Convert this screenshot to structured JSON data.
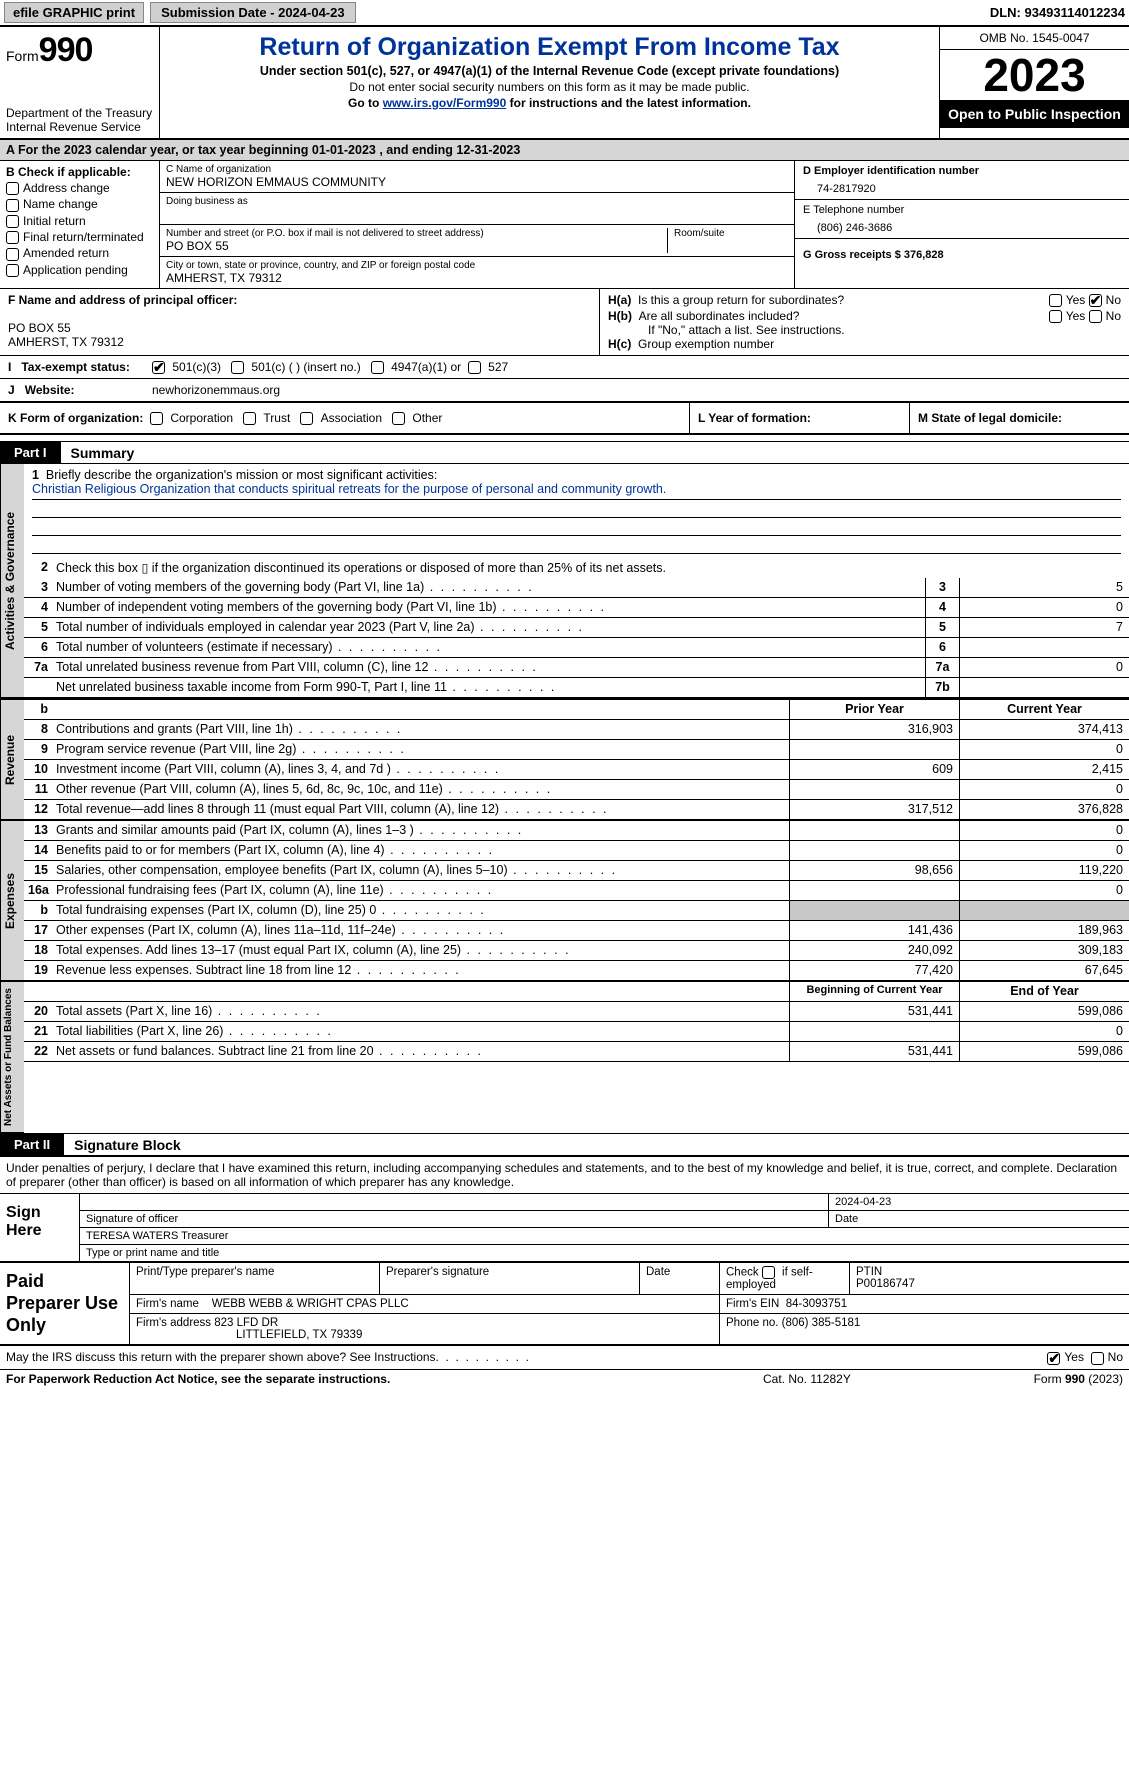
{
  "topbar": {
    "efile": "efile GRAPHIC print",
    "submission": "Submission Date - 2024-04-23",
    "dln": "DLN: 93493114012234"
  },
  "header": {
    "form_label": "Form",
    "form_num": "990",
    "dept": "Department of the Treasury\nInternal Revenue Service",
    "title": "Return of Organization Exempt From Income Tax",
    "sub1": "Under section 501(c), 527, or 4947(a)(1) of the Internal Revenue Code (except private foundations)",
    "sub2": "Do not enter social security numbers on this form as it may be made public.",
    "sub3_pre": "Go to ",
    "sub3_link": "www.irs.gov/Form990",
    "sub3_post": " for instructions and the latest information.",
    "omb": "OMB No. 1545-0047",
    "year": "2023",
    "otp": "Open to Public Inspection"
  },
  "rowA": "A For the 2023 calendar year, or tax year beginning 01-01-2023   , and ending 12-31-2023",
  "colB": {
    "label": "B Check if applicable:",
    "opts": [
      "Address change",
      "Name change",
      "Initial return",
      "Final return/terminated",
      "Amended return",
      "Application pending"
    ]
  },
  "colC": {
    "name_lab": "C Name of organization",
    "name_val": "NEW HORIZON EMMAUS COMMUNITY",
    "dba_lab": "Doing business as",
    "street_lab": "Number and street (or P.O. box if mail is not delivered to street address)",
    "street_val": "PO BOX 55",
    "room_lab": "Room/suite",
    "city_lab": "City or town, state or province, country, and ZIP or foreign postal code",
    "city_val": "AMHERST, TX   79312"
  },
  "colD": {
    "ein_lab": "D Employer identification number",
    "ein_val": "74-2817920",
    "tel_lab": "E Telephone number",
    "tel_val": "(806) 246-3686",
    "gross_lab": "G Gross receipts $ 376,828"
  },
  "F": {
    "lab": "F Name and address of principal officer:",
    "addr1": "PO BOX 55",
    "addr2": "AMHERST, TX   79312"
  },
  "H": {
    "a": "H(a)  Is this a group return for subordinates?",
    "b": "H(b)  Are all subordinates included?",
    "b_note": "If \"No,\" attach a list. See instructions.",
    "c": "H(c)  Group exemption number",
    "yes": "Yes",
    "no": "No"
  },
  "I": {
    "lab": "Tax-exempt status:",
    "o1": "501(c)(3)",
    "o2": "501(c) (  ) (insert no.)",
    "o3": "4947(a)(1) or",
    "o4": "527"
  },
  "J": {
    "lab": "Website:",
    "val": "newhorizonemmaus.org"
  },
  "K": {
    "lab": "K Form of organization:",
    "opts": [
      "Corporation",
      "Trust",
      "Association",
      "Other"
    ]
  },
  "L": "L Year of formation:",
  "M": "M State of legal domicile:",
  "part1": {
    "tag": "Part I",
    "title": "Summary"
  },
  "mission": {
    "q": "Briefly describe the organization's mission or most significant activities:",
    "a": "Christian Religious Organization that conducts spiritual retreats for the purpose of personal and community growth."
  },
  "lines_gov": [
    {
      "n": "2",
      "d": "Check this box  ▯  if the organization discontinued its operations or disposed of more than 25% of its net assets."
    },
    {
      "n": "3",
      "d": "Number of voting members of the governing body (Part VI, line 1a)",
      "box": "3",
      "v": "5"
    },
    {
      "n": "4",
      "d": "Number of independent voting members of the governing body (Part VI, line 1b)",
      "box": "4",
      "v": "0"
    },
    {
      "n": "5",
      "d": "Total number of individuals employed in calendar year 2023 (Part V, line 2a)",
      "box": "5",
      "v": "7"
    },
    {
      "n": "6",
      "d": "Total number of volunteers (estimate if necessary)",
      "box": "6",
      "v": ""
    },
    {
      "n": "7a",
      "d": "Total unrelated business revenue from Part VIII, column (C), line 12",
      "box": "7a",
      "v": "0"
    },
    {
      "n": "",
      "d": "Net unrelated business taxable income from Form 990-T, Part I, line 11",
      "box": "7b",
      "v": ""
    }
  ],
  "col_hdrs": {
    "prior": "Prior Year",
    "current": "Current Year",
    "boy": "Beginning of Current Year",
    "eoy": "End of Year"
  },
  "lines_rev": [
    {
      "n": "8",
      "d": "Contributions and grants (Part VIII, line 1h)",
      "p": "316,903",
      "c": "374,413"
    },
    {
      "n": "9",
      "d": "Program service revenue (Part VIII, line 2g)",
      "p": "",
      "c": "0"
    },
    {
      "n": "10",
      "d": "Investment income (Part VIII, column (A), lines 3, 4, and 7d )",
      "p": "609",
      "c": "2,415"
    },
    {
      "n": "11",
      "d": "Other revenue (Part VIII, column (A), lines 5, 6d, 8c, 9c, 10c, and 11e)",
      "p": "",
      "c": "0"
    },
    {
      "n": "12",
      "d": "Total revenue—add lines 8 through 11 (must equal Part VIII, column (A), line 12)",
      "p": "317,512",
      "c": "376,828"
    }
  ],
  "lines_exp": [
    {
      "n": "13",
      "d": "Grants and similar amounts paid (Part IX, column (A), lines 1–3 )",
      "p": "",
      "c": "0"
    },
    {
      "n": "14",
      "d": "Benefits paid to or for members (Part IX, column (A), line 4)",
      "p": "",
      "c": "0"
    },
    {
      "n": "15",
      "d": "Salaries, other compensation, employee benefits (Part IX, column (A), lines 5–10)",
      "p": "98,656",
      "c": "119,220"
    },
    {
      "n": "16a",
      "d": "Professional fundraising fees (Part IX, column (A), line 11e)",
      "p": "",
      "c": "0"
    },
    {
      "n": "b",
      "d": "Total fundraising expenses (Part IX, column (D), line 25) 0",
      "p": "shade",
      "c": "shade"
    },
    {
      "n": "17",
      "d": "Other expenses (Part IX, column (A), lines 11a–11d, 11f–24e)",
      "p": "141,436",
      "c": "189,963"
    },
    {
      "n": "18",
      "d": "Total expenses. Add lines 13–17 (must equal Part IX, column (A), line 25)",
      "p": "240,092",
      "c": "309,183"
    },
    {
      "n": "19",
      "d": "Revenue less expenses. Subtract line 18 from line 12",
      "p": "77,420",
      "c": "67,645"
    }
  ],
  "lines_net": [
    {
      "n": "20",
      "d": "Total assets (Part X, line 16)",
      "p": "531,441",
      "c": "599,086"
    },
    {
      "n": "21",
      "d": "Total liabilities (Part X, line 26)",
      "p": "",
      "c": "0"
    },
    {
      "n": "22",
      "d": "Net assets or fund balances. Subtract line 21 from line 20",
      "p": "531,441",
      "c": "599,086"
    }
  ],
  "part2": {
    "tag": "Part II",
    "title": "Signature Block"
  },
  "sig_intro": "Under penalties of perjury, I declare that I have examined this return, including accompanying schedules and statements, and to the best of my knowledge and belief, it is true, correct, and complete. Declaration of preparer (other than officer) is based on all information of which preparer has any knowledge.",
  "sign": {
    "lab": "Sign Here",
    "sig_lab": "Signature of officer",
    "name": "TERESA WATERS  Treasurer",
    "name_lab": "Type or print name and title",
    "date": "2024-04-23",
    "date_lab": "Date"
  },
  "prep": {
    "lab": "Paid Preparer Use Only",
    "h1": "Print/Type preparer's name",
    "h2": "Preparer's signature",
    "h3": "Date",
    "h4_pre": "Check",
    "h4_post": "if self-employed",
    "h5": "PTIN",
    "ptin": "P00186747",
    "firm_lab": "Firm's name",
    "firm": "WEBB WEBB & WRIGHT CPAS PLLC",
    "ein_lab": "Firm's EIN",
    "ein": "84-3093751",
    "addr_lab": "Firm's address",
    "addr1": "823 LFD DR",
    "addr2": "LITTLEFIELD, TX   79339",
    "phone_lab": "Phone no.",
    "phone": "(806) 385-5181"
  },
  "discuss": "May the IRS discuss this return with the preparer shown above? See Instructions.",
  "footer": {
    "pra": "For Paperwork Reduction Act Notice, see the separate instructions.",
    "cat": "Cat. No. 11282Y",
    "form": "Form 990 (2023)"
  },
  "sidelabels": {
    "gov": "Activities & Governance",
    "rev": "Revenue",
    "exp": "Expenses",
    "net": "Net Assets or Fund Balances"
  }
}
